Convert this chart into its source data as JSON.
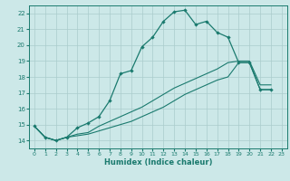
{
  "xlabel": "Humidex (Indice chaleur)",
  "xlim": [
    -0.5,
    23.5
  ],
  "ylim": [
    13.5,
    22.5
  ],
  "xticks": [
    0,
    1,
    2,
    3,
    4,
    5,
    6,
    7,
    8,
    9,
    10,
    11,
    12,
    13,
    14,
    15,
    16,
    17,
    18,
    19,
    20,
    21,
    22,
    23
  ],
  "yticks": [
    14,
    15,
    16,
    17,
    18,
    19,
    20,
    21,
    22
  ],
  "bg_color": "#cce8e8",
  "line_color": "#1a7a6e",
  "grid_color": "#aacccc",
  "line1_x": [
    0,
    1,
    2,
    3,
    4,
    5,
    6,
    7,
    8,
    9,
    10,
    11,
    12,
    13,
    14,
    15,
    16,
    17,
    18,
    19,
    20,
    21,
    22
  ],
  "line1_y": [
    14.9,
    14.2,
    14.0,
    14.2,
    14.8,
    15.1,
    15.5,
    16.5,
    18.2,
    18.4,
    19.9,
    20.5,
    21.5,
    22.1,
    22.2,
    21.3,
    21.5,
    20.8,
    20.5,
    18.9,
    18.9,
    17.2,
    17.2
  ],
  "line2_x": [
    0,
    1,
    2,
    3,
    4,
    5,
    6,
    7,
    8,
    9,
    10,
    11,
    12,
    13,
    14,
    15,
    16,
    17,
    18,
    19,
    20,
    21,
    22
  ],
  "line2_y": [
    14.9,
    14.2,
    14.0,
    14.2,
    14.3,
    14.4,
    14.6,
    14.8,
    15.0,
    15.2,
    15.5,
    15.8,
    16.1,
    16.5,
    16.9,
    17.2,
    17.5,
    17.8,
    18.0,
    18.9,
    18.9,
    17.2,
    17.2
  ],
  "line3_x": [
    0,
    1,
    2,
    3,
    4,
    5,
    6,
    7,
    8,
    9,
    10,
    11,
    12,
    13,
    14,
    15,
    16,
    17,
    18,
    19,
    20,
    21,
    22
  ],
  "line3_y": [
    14.9,
    14.2,
    14.0,
    14.2,
    14.4,
    14.5,
    14.9,
    15.2,
    15.5,
    15.8,
    16.1,
    16.5,
    16.9,
    17.3,
    17.6,
    17.9,
    18.2,
    18.5,
    18.9,
    19.0,
    19.0,
    17.5,
    17.5
  ]
}
